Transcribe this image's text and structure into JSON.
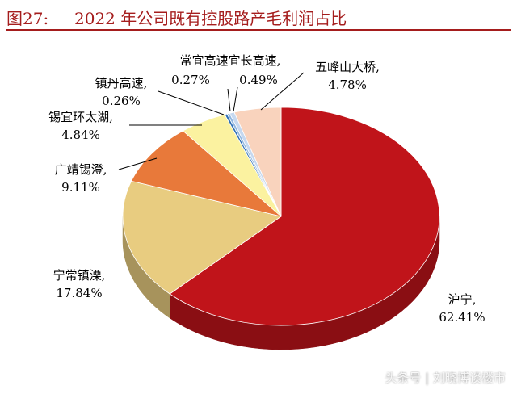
{
  "figure": {
    "label": "图27:",
    "title": "2022 年公司既有控股路产毛利润占比"
  },
  "chart_data": {
    "type": "pie",
    "title": "2022 年公司既有控股路产毛利润占比",
    "slices": [
      {
        "name": "沪宁",
        "value": 62.41,
        "value_label": "62.41%",
        "color": "#c0141a"
      },
      {
        "name": "宁常镇溧",
        "value": 17.84,
        "value_label": "17.84%",
        "color": "#e8cc80"
      },
      {
        "name": "广靖锡澄",
        "value": 9.11,
        "value_label": "9.11%",
        "color": "#e8793a"
      },
      {
        "name": "锡宜环太湖",
        "value": 4.84,
        "value_label": "4.84%",
        "color": "#fbf2a0"
      },
      {
        "name": "镇丹高速",
        "value": 0.26,
        "value_label": "0.26%",
        "color": "#2f6fb5"
      },
      {
        "name": "常宜高速",
        "value": 0.27,
        "value_label": "0.27%",
        "color": "#8fb6e0"
      },
      {
        "name": "宜长高速",
        "value": 0.49,
        "value_label": "0.49%",
        "color": "#c6d8ef"
      },
      {
        "name": "五峰山大桥",
        "value": 4.78,
        "value_label": "4.78%",
        "color": "#f9d3bd"
      }
    ],
    "style": "3d"
  },
  "watermark": "头条号 | 刘晓博谈楼市"
}
